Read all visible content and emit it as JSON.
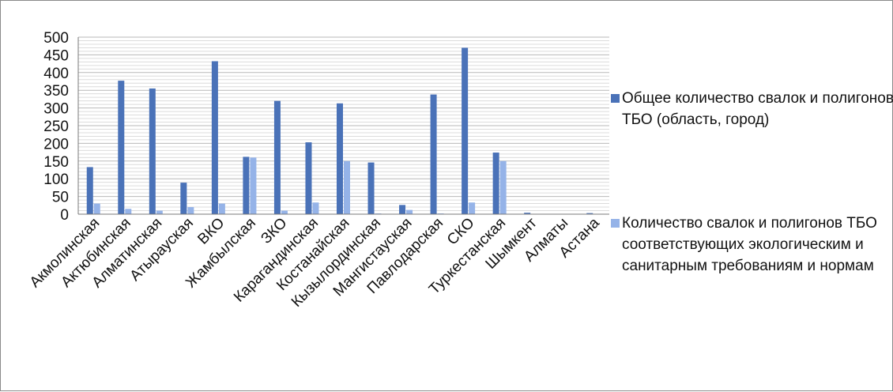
{
  "chart_data": {
    "type": "bar",
    "categories": [
      "Акмолинская",
      "Актюбинская",
      "Алматинская",
      "Атырауская",
      "ВКО",
      "Жамбылская",
      "ЗКО",
      "Карагандинская",
      "Костанайская",
      "Кызылординская",
      "Мангистауская",
      "Павлодарская",
      "СКО",
      "Туркестанская",
      "Шымкент",
      "Алматы",
      "Астана"
    ],
    "series": [
      {
        "name": "Общее количество свалок и полигонов ТБО (область, город)",
        "color": "#4A72B8",
        "values": [
          133,
          377,
          355,
          89,
          432,
          162,
          320,
          203,
          313,
          146,
          26,
          338,
          470,
          174,
          4,
          0,
          3
        ]
      },
      {
        "name": "Количество свалок и полигонов ТБО соответствующих экологическим и санитарным требованиям и нормам",
        "color": "#95B3E8",
        "values": [
          30,
          15,
          10,
          20,
          30,
          160,
          10,
          33,
          150,
          2,
          12,
          2,
          33,
          150,
          0,
          0,
          0
        ]
      }
    ],
    "yticks": [
      "0",
      "50",
      "100",
      "150",
      "200",
      "250",
      "300",
      "350",
      "400",
      "450",
      "500"
    ],
    "ylim": [
      0,
      500
    ],
    "grid": true,
    "legend_position": "right"
  }
}
